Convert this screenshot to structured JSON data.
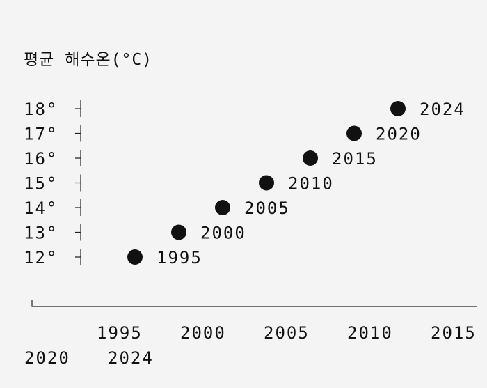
{
  "chart_data": {
    "type": "scatter",
    "title": "평균 해수온(°C)",
    "ylabel": "",
    "xlabel": "",
    "y_tick_labels": [
      "18°",
      "17°",
      "16°",
      "15°",
      "14°",
      "13°",
      "12°"
    ],
    "x_tick_labels": [
      "1995",
      "2000",
      "2005",
      "2010",
      "2015",
      "2020",
      "2024"
    ],
    "points": [
      {
        "label": "1995",
        "y": 12
      },
      {
        "label": "2000",
        "y": 13
      },
      {
        "label": "2005",
        "y": 14
      },
      {
        "label": "2010",
        "y": 15
      },
      {
        "label": "2015",
        "y": 16
      },
      {
        "label": "2020",
        "y": 17
      },
      {
        "label": "2024",
        "y": 18
      }
    ],
    "ylim": [
      12,
      18
    ],
    "grid": false,
    "legend": "none",
    "marker_color": "#111111",
    "background_color": "#f4f4f4"
  }
}
